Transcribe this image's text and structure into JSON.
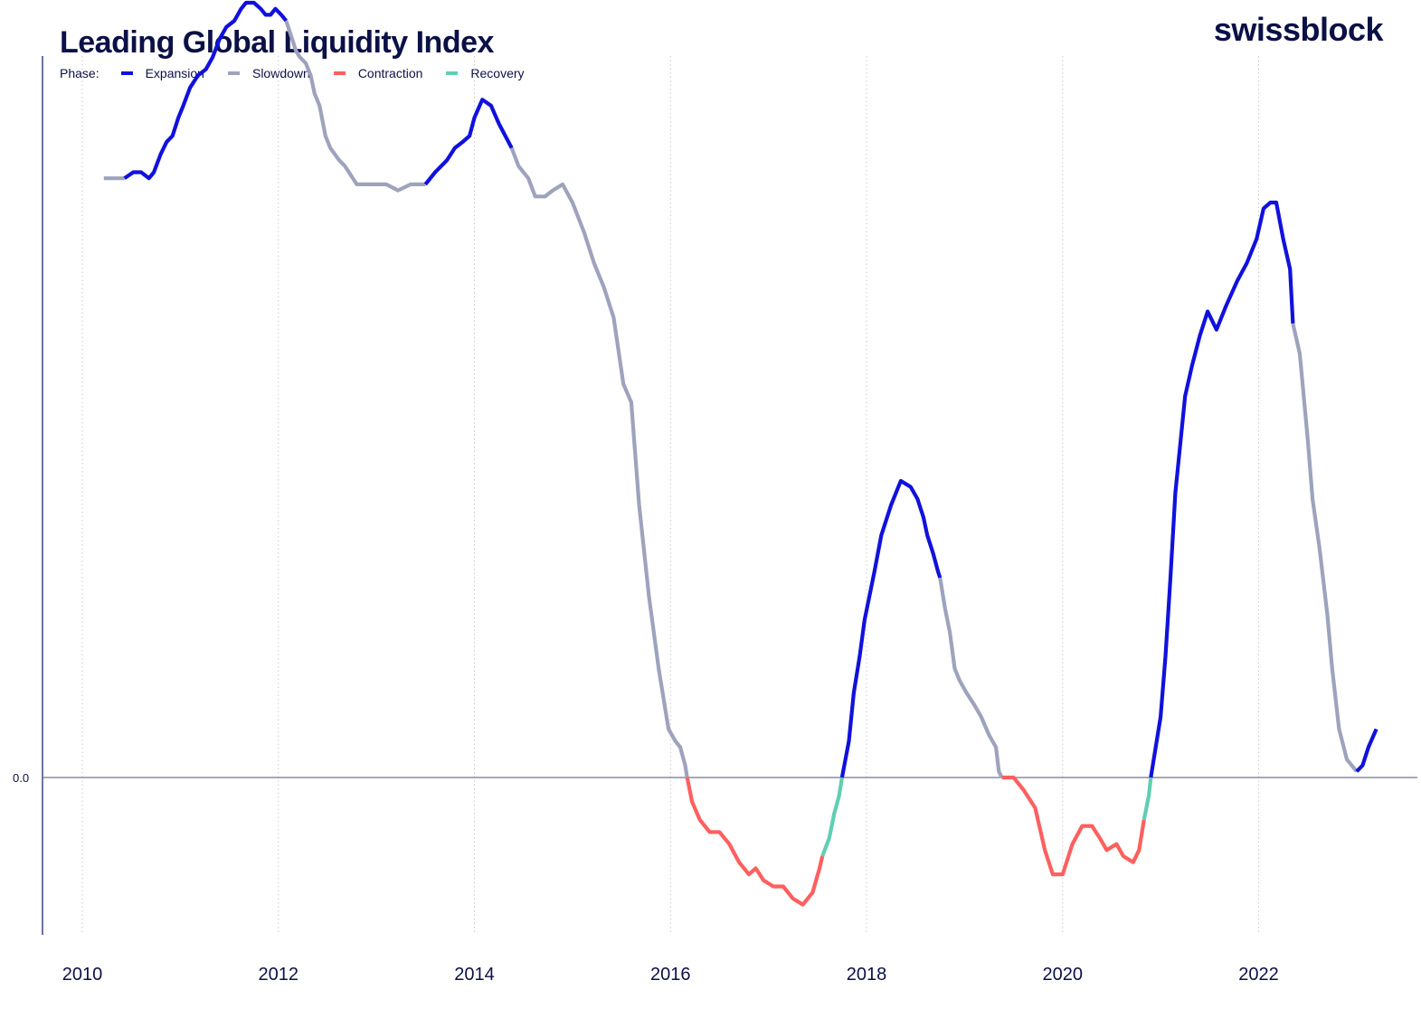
{
  "header": {
    "title": "Leading Global Liquidity Index",
    "brand": "swissblock"
  },
  "legend": {
    "lead": "Phase:",
    "items": [
      {
        "label": "Expansion",
        "color": "#1111dd"
      },
      {
        "label": "Slowdown",
        "color": "#9ea3bd"
      },
      {
        "label": "Contraction",
        "color": "#ff5f5f"
      },
      {
        "label": "Recovery",
        "color": "#5fcfb4"
      }
    ]
  },
  "chart_data": {
    "type": "line",
    "title": "Leading Global Liquidity Index",
    "xlabel": "",
    "ylabel": "",
    "x_ticks": [
      "2010",
      "2012",
      "2014",
      "2016",
      "2018",
      "2020",
      "2022"
    ],
    "y_ticks": [
      "0.0"
    ],
    "xlim": [
      2009.58,
      2023.97
    ],
    "ylim": [
      -0.31,
      1.36
    ],
    "grid": {
      "vertical": true,
      "horizontal": false
    },
    "zero_line": true,
    "legend_position": "top-left",
    "series": [
      {
        "name": "Slowdown",
        "color": "#9ea3bd",
        "points": [
          [
            2010.22,
            0.99
          ],
          [
            2010.43,
            0.99
          ]
        ]
      },
      {
        "name": "Expansion",
        "color": "#1111dd",
        "points": [
          [
            2010.43,
            0.99
          ],
          [
            2010.52,
            1.0
          ],
          [
            2010.6,
            1.0
          ],
          [
            2010.68,
            0.99
          ],
          [
            2010.73,
            1.0
          ],
          [
            2010.8,
            1.03
          ],
          [
            2010.86,
            1.05
          ],
          [
            2010.92,
            1.06
          ],
          [
            2010.98,
            1.09
          ],
          [
            2011.03,
            1.11
          ],
          [
            2011.1,
            1.14
          ],
          [
            2011.18,
            1.16
          ],
          [
            2011.26,
            1.17
          ],
          [
            2011.33,
            1.19
          ],
          [
            2011.4,
            1.22
          ],
          [
            2011.47,
            1.24
          ],
          [
            2011.55,
            1.25
          ],
          [
            2011.62,
            1.27
          ],
          [
            2011.67,
            1.28
          ],
          [
            2011.75,
            1.28
          ],
          [
            2011.82,
            1.27
          ],
          [
            2011.87,
            1.26
          ],
          [
            2011.92,
            1.26
          ],
          [
            2011.97,
            1.27
          ],
          [
            2012.03,
            1.26
          ],
          [
            2012.08,
            1.25
          ]
        ]
      },
      {
        "name": "Slowdown",
        "color": "#9ea3bd",
        "points": [
          [
            2012.08,
            1.25
          ],
          [
            2012.12,
            1.23
          ],
          [
            2012.18,
            1.2
          ],
          [
            2012.22,
            1.19
          ],
          [
            2012.28,
            1.18
          ],
          [
            2012.33,
            1.16
          ],
          [
            2012.37,
            1.13
          ],
          [
            2012.42,
            1.11
          ],
          [
            2012.48,
            1.06
          ],
          [
            2012.53,
            1.04
          ],
          [
            2012.62,
            1.02
          ],
          [
            2012.68,
            1.01
          ],
          [
            2012.8,
            0.98
          ],
          [
            2012.95,
            0.98
          ],
          [
            2013.1,
            0.98
          ],
          [
            2013.22,
            0.97
          ],
          [
            2013.35,
            0.98
          ],
          [
            2013.42,
            0.98
          ],
          [
            2013.5,
            0.98
          ]
        ]
      },
      {
        "name": "Expansion",
        "color": "#1111dd",
        "points": [
          [
            2013.5,
            0.98
          ],
          [
            2013.6,
            1.0
          ],
          [
            2013.72,
            1.02
          ],
          [
            2013.8,
            1.04
          ],
          [
            2013.88,
            1.05
          ],
          [
            2013.95,
            1.06
          ],
          [
            2014.0,
            1.09
          ],
          [
            2014.08,
            1.12
          ],
          [
            2014.17,
            1.11
          ],
          [
            2014.25,
            1.08
          ],
          [
            2014.38,
            1.04
          ]
        ]
      },
      {
        "name": "Slowdown",
        "color": "#9ea3bd",
        "points": [
          [
            2014.38,
            1.04
          ],
          [
            2014.45,
            1.01
          ],
          [
            2014.55,
            0.99
          ],
          [
            2014.62,
            0.96
          ],
          [
            2014.72,
            0.96
          ],
          [
            2014.8,
            0.97
          ],
          [
            2014.9,
            0.98
          ],
          [
            2015.0,
            0.95
          ],
          [
            2015.12,
            0.9
          ],
          [
            2015.22,
            0.85
          ],
          [
            2015.32,
            0.81
          ],
          [
            2015.42,
            0.76
          ],
          [
            2015.52,
            0.65
          ],
          [
            2015.6,
            0.62
          ],
          [
            2015.68,
            0.45
          ],
          [
            2015.78,
            0.3
          ],
          [
            2015.88,
            0.18
          ],
          [
            2015.98,
            0.08
          ],
          [
            2016.05,
            0.06
          ],
          [
            2016.1,
            0.05
          ],
          [
            2016.15,
            0.02
          ],
          [
            2016.17,
            0.0
          ]
        ]
      },
      {
        "name": "Contraction",
        "color": "#ff5f5f",
        "points": [
          [
            2016.17,
            0.0
          ],
          [
            2016.22,
            -0.04
          ],
          [
            2016.3,
            -0.07
          ],
          [
            2016.4,
            -0.09
          ],
          [
            2016.5,
            -0.09
          ],
          [
            2016.6,
            -0.11
          ],
          [
            2016.7,
            -0.14
          ],
          [
            2016.8,
            -0.16
          ],
          [
            2016.87,
            -0.15
          ],
          [
            2016.95,
            -0.17
          ],
          [
            2017.05,
            -0.18
          ],
          [
            2017.15,
            -0.18
          ],
          [
            2017.25,
            -0.2
          ],
          [
            2017.35,
            -0.21
          ],
          [
            2017.45,
            -0.19
          ],
          [
            2017.52,
            -0.15
          ],
          [
            2017.55,
            -0.13
          ]
        ]
      },
      {
        "name": "Recovery",
        "color": "#5fcfb4",
        "points": [
          [
            2017.55,
            -0.13
          ],
          [
            2017.62,
            -0.1
          ],
          [
            2017.67,
            -0.06
          ],
          [
            2017.72,
            -0.03
          ],
          [
            2017.75,
            0.0
          ]
        ]
      },
      {
        "name": "Expansion",
        "color": "#1111dd",
        "points": [
          [
            2017.75,
            0.0
          ],
          [
            2017.82,
            0.06
          ],
          [
            2017.87,
            0.14
          ],
          [
            2017.93,
            0.2
          ],
          [
            2017.98,
            0.26
          ],
          [
            2018.08,
            0.34
          ],
          [
            2018.15,
            0.4
          ],
          [
            2018.25,
            0.45
          ],
          [
            2018.35,
            0.49
          ],
          [
            2018.45,
            0.48
          ],
          [
            2018.52,
            0.46
          ],
          [
            2018.58,
            0.43
          ],
          [
            2018.62,
            0.4
          ],
          [
            2018.68,
            0.37
          ],
          [
            2018.73,
            0.34
          ],
          [
            2018.75,
            0.33
          ]
        ]
      },
      {
        "name": "Slowdown",
        "color": "#9ea3bd",
        "points": [
          [
            2018.75,
            0.33
          ],
          [
            2018.8,
            0.28
          ],
          [
            2018.85,
            0.24
          ],
          [
            2018.9,
            0.18
          ],
          [
            2018.95,
            0.16
          ],
          [
            2019.02,
            0.14
          ],
          [
            2019.1,
            0.12
          ],
          [
            2019.17,
            0.1
          ],
          [
            2019.25,
            0.07
          ],
          [
            2019.32,
            0.05
          ],
          [
            2019.35,
            0.01
          ],
          [
            2019.38,
            0.0
          ]
        ]
      },
      {
        "name": "Contraction",
        "color": "#ff5f5f",
        "points": [
          [
            2019.38,
            0.0
          ],
          [
            2019.5,
            0.0
          ],
          [
            2019.6,
            -0.02
          ],
          [
            2019.72,
            -0.05
          ],
          [
            2019.82,
            -0.12
          ],
          [
            2019.9,
            -0.16
          ],
          [
            2020.0,
            -0.16
          ],
          [
            2020.1,
            -0.11
          ],
          [
            2020.2,
            -0.08
          ],
          [
            2020.3,
            -0.08
          ],
          [
            2020.38,
            -0.1
          ],
          [
            2020.45,
            -0.12
          ],
          [
            2020.55,
            -0.11
          ],
          [
            2020.62,
            -0.13
          ],
          [
            2020.72,
            -0.14
          ],
          [
            2020.78,
            -0.12
          ],
          [
            2020.83,
            -0.07
          ]
        ]
      },
      {
        "name": "Recovery",
        "color": "#5fcfb4",
        "points": [
          [
            2020.83,
            -0.07
          ],
          [
            2020.88,
            -0.03
          ],
          [
            2020.9,
            0.0
          ]
        ]
      },
      {
        "name": "Expansion",
        "color": "#1111dd",
        "points": [
          [
            2020.9,
            0.0
          ],
          [
            2021.0,
            0.1
          ],
          [
            2021.05,
            0.2
          ],
          [
            2021.1,
            0.33
          ],
          [
            2021.15,
            0.47
          ],
          [
            2021.25,
            0.63
          ],
          [
            2021.32,
            0.68
          ],
          [
            2021.4,
            0.73
          ],
          [
            2021.48,
            0.77
          ],
          [
            2021.57,
            0.74
          ],
          [
            2021.67,
            0.78
          ],
          [
            2021.78,
            0.82
          ],
          [
            2021.88,
            0.85
          ],
          [
            2021.98,
            0.89
          ],
          [
            2022.05,
            0.94
          ],
          [
            2022.12,
            0.95
          ],
          [
            2022.18,
            0.95
          ],
          [
            2022.25,
            0.89
          ],
          [
            2022.32,
            0.84
          ],
          [
            2022.35,
            0.75
          ]
        ]
      },
      {
        "name": "Slowdown",
        "color": "#9ea3bd",
        "points": [
          [
            2022.35,
            0.75
          ],
          [
            2022.42,
            0.7
          ],
          [
            2022.5,
            0.56
          ],
          [
            2022.55,
            0.46
          ],
          [
            2022.62,
            0.38
          ],
          [
            2022.7,
            0.27
          ],
          [
            2022.75,
            0.18
          ],
          [
            2022.82,
            0.08
          ],
          [
            2022.9,
            0.03
          ],
          [
            2023.0,
            0.01
          ]
        ]
      },
      {
        "name": "Expansion",
        "color": "#1111dd",
        "points": [
          [
            2023.0,
            0.01
          ],
          [
            2023.06,
            0.02
          ],
          [
            2023.12,
            0.05
          ],
          [
            2023.2,
            0.08
          ]
        ]
      }
    ]
  }
}
